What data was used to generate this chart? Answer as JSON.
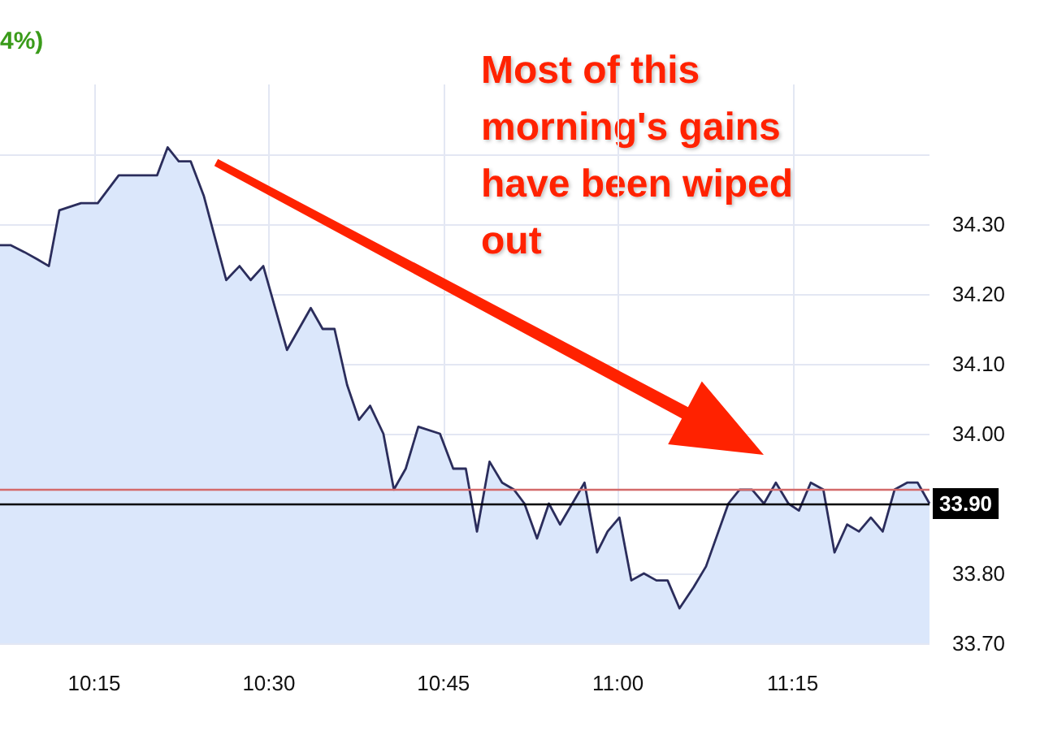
{
  "chart_data": {
    "type": "area",
    "subtitle": "4%)",
    "annotations": [
      "Most of this morning's gains have been wiped out"
    ],
    "x": [
      10.115,
      10.13,
      10.15,
      10.168,
      10.185,
      10.2,
      10.231,
      10.255,
      10.285,
      10.306,
      10.325,
      10.34,
      10.355,
      10.371,
      10.388,
      10.407,
      10.439,
      10.458,
      10.474,
      10.492,
      10.526,
      10.56,
      10.577,
      10.594,
      10.612,
      10.629,
      10.645,
      10.664,
      10.679,
      10.696,
      10.714,
      10.745,
      10.764,
      10.782,
      10.798,
      10.816,
      10.834,
      10.851,
      10.866,
      10.884,
      10.901,
      10.917,
      10.952,
      10.97,
      10.985,
      11.002,
      11.019,
      11.037,
      11.055,
      11.071,
      11.088,
      11.108,
      11.126,
      11.158,
      11.174,
      11.192,
      11.209,
      11.226,
      11.244,
      11.259,
      11.276,
      11.294,
      11.31,
      11.328,
      11.345,
      11.362,
      11.379,
      11.396,
      11.414,
      11.429,
      11.446
    ],
    "series": [
      {
        "color": "#2b2d5c",
        "values": [
          34.27,
          34.27,
          34.26,
          34.25,
          34.24,
          34.32,
          34.33,
          34.33,
          34.37,
          34.37,
          34.37,
          34.37,
          34.41,
          34.39,
          34.39,
          34.34,
          34.22,
          34.24,
          34.22,
          34.24,
          34.12,
          34.18,
          34.15,
          34.15,
          34.07,
          34.02,
          34.04,
          34.0,
          33.92,
          33.95,
          34.01,
          34.0,
          33.95,
          33.95,
          33.86,
          33.96,
          33.93,
          33.92,
          33.9,
          33.85,
          33.9,
          33.87,
          33.93,
          33.83,
          33.86,
          33.88,
          33.79,
          33.8,
          33.79,
          33.79,
          33.75,
          33.78,
          33.81,
          33.9,
          33.92,
          33.92,
          33.9,
          33.93,
          33.9,
          33.89,
          33.93,
          33.92,
          33.83,
          33.87,
          33.86,
          33.88,
          33.86,
          33.92,
          33.93,
          33.93,
          33.9
        ]
      }
    ],
    "xlim": [
      10.115,
      11.446
    ],
    "xticks": [
      {
        "value": 10.25,
        "label": "10:15"
      },
      {
        "value": 10.5,
        "label": "10:30"
      },
      {
        "value": 10.75,
        "label": "10:45"
      },
      {
        "value": 11.0,
        "label": "11:00"
      },
      {
        "value": 11.25,
        "label": "11:15"
      }
    ],
    "ylim": [
      33.7,
      34.5
    ],
    "yticks": [
      {
        "value": 33.7,
        "label": "33.70"
      },
      {
        "value": 33.8,
        "label": "33.80"
      },
      {
        "value": 33.9,
        "label": null
      },
      {
        "value": 34.0,
        "label": "34.00"
      },
      {
        "value": 34.1,
        "label": "34.10"
      },
      {
        "value": 34.2,
        "label": "34.20"
      },
      {
        "value": 34.3,
        "label": "34.30"
      },
      {
        "value": 34.4,
        "label": null
      }
    ],
    "ref_lines": [
      {
        "axis": "y",
        "value": 33.92,
        "color": "#d46a6a"
      },
      {
        "axis": "y",
        "value": 33.9,
        "label": "33.90",
        "color": "#000000"
      }
    ],
    "grid": true,
    "marker": "none"
  }
}
